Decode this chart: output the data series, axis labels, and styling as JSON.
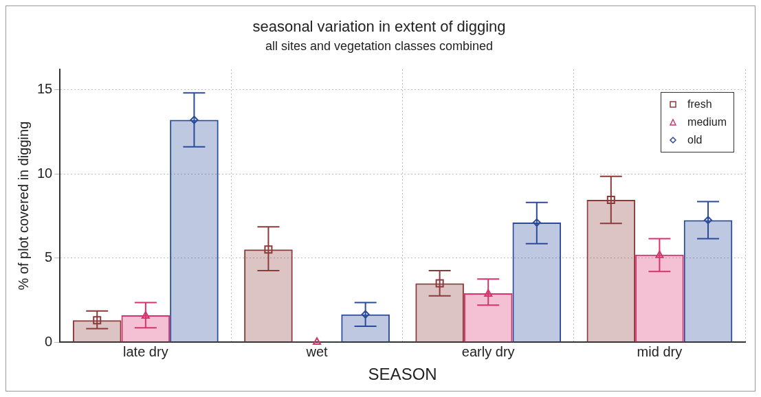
{
  "chart_data": {
    "type": "bar",
    "title": "seasonal variation in extent of digging",
    "subtitle": "all sites and vegetation classes combined",
    "xlabel": "SEASON",
    "ylabel": "% of plot covered in digging",
    "categories": [
      "late dry",
      "wet",
      "early dry",
      "mid dry"
    ],
    "series": [
      {
        "name": "fresh",
        "color": "#8b3a3a",
        "marker": "square",
        "values": [
          1.3,
          5.5,
          3.5,
          8.45
        ],
        "errors": [
          [
            0.8,
            1.85
          ],
          [
            4.25,
            6.85
          ],
          [
            2.75,
            4.25
          ],
          [
            7.05,
            9.85
          ]
        ]
      },
      {
        "name": "medium",
        "color": "#d6336c",
        "marker": "triangle",
        "values": [
          1.6,
          0.05,
          2.9,
          5.2
        ],
        "errors": [
          [
            0.85,
            2.35
          ],
          null,
          [
            2.2,
            3.75
          ],
          [
            4.2,
            6.15
          ]
        ]
      },
      {
        "name": "old",
        "color": "#2a4a9a",
        "marker": "diamond",
        "values": [
          13.2,
          1.65,
          7.1,
          7.25
        ],
        "errors": [
          [
            11.6,
            14.8
          ],
          [
            0.95,
            2.35
          ],
          [
            5.85,
            8.3
          ],
          [
            6.15,
            8.35
          ]
        ]
      },
      {
        "type": "scatter",
        "color": "#8b3a3a",
        "marker": "square",
        "x": [
          "late dry",
          "wet",
          "early dry",
          "mid dry"
        ],
        "values": [
          1.3,
          5.5,
          3.5,
          8.45
        ]
      },
      {
        "type": "scatter",
        "color": "#d6336c",
        "marker": "triangle",
        "x": [
          "late dry",
          "wet",
          "early dry",
          "mid dry"
        ],
        "values": [
          1.6,
          0.05,
          2.9,
          5.2
        ]
      },
      {
        "type": "scatter",
        "color": "#2a4a9a",
        "marker": "diamond",
        "x": [
          "late dry",
          "wet",
          "early dry",
          "mid dry"
        ],
        "values": [
          13.2,
          1.65,
          7.1,
          7.25
        ]
      }
    ],
    "ylim": [
      0,
      16.2
    ],
    "yticks": [
      0,
      5,
      10,
      15
    ],
    "grid": true,
    "legend": "top right"
  }
}
